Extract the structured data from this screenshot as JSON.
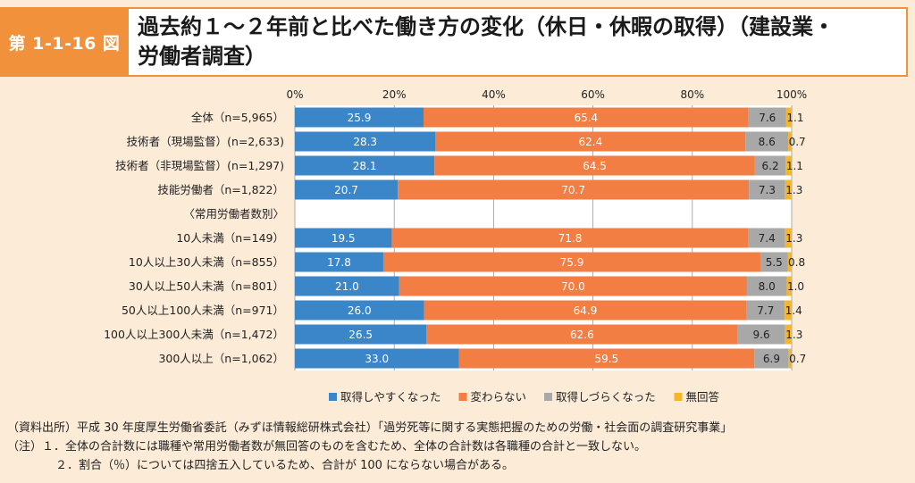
{
  "figure": {
    "label": "第 1-1-16 図",
    "title_line1": "過去約１～２年前と比べた働き方の変化（休日・休暇の取得）（建設業・",
    "title_line2": "労働者調査）"
  },
  "notes": {
    "source": "（資料出所）平成 30 年度厚生労働省委託（みずほ情報総研株式会社）「過労死等に関する実態把握のための労働・社会面の調査研究事業」",
    "note1": "（注）１．全体の合計数には職種や常用労働者数が無回答のものを含むため、全体の合計数は各職種の合計と一致しない。",
    "note2": "２．割合（％）については四捨五入しているため、合計が 100 にならない場合がある。"
  },
  "chart_data": {
    "type": "bar",
    "orientation": "horizontal",
    "stacked": true,
    "xlim": [
      0,
      100
    ],
    "x_ticks": [
      "0%",
      "20%",
      "40%",
      "60%",
      "80%",
      "100%"
    ],
    "grid": true,
    "legend_position": "bottom",
    "categories": [
      "全体（n=5,965）",
      "技術者（現場監督）(n=2,633)",
      "技術者（非現場監督）(n=1,297)",
      "技能労働者（n=1,822）",
      "〈常用労働者数別〉",
      "10人未満（n=149）",
      "10人以上30人未満（n=855）",
      "30人以上50人未満（n=801）",
      "50人以上100人未満（n=971）",
      "100人以上300人未満（n=1,472）",
      "300人以上（n=1,062）"
    ],
    "series": [
      {
        "name": "取得しやすくなった",
        "color": "#3a86c8",
        "values": [
          25.9,
          28.3,
          28.1,
          20.7,
          null,
          19.5,
          17.8,
          21.0,
          26.0,
          26.5,
          33.0
        ],
        "labels": [
          "25.9",
          "28.3",
          "28.1",
          "20.7",
          "",
          "19.5",
          "17.8",
          "21.0",
          "26.0",
          "26.5",
          "33.0"
        ]
      },
      {
        "name": "変わらない",
        "color": "#f37e43",
        "values": [
          65.4,
          62.4,
          64.5,
          70.7,
          null,
          71.8,
          75.9,
          70.0,
          64.9,
          62.6,
          59.5
        ],
        "labels": [
          "65.4",
          "62.4",
          "64.5",
          "70.7",
          "",
          "71.8",
          "75.9",
          "70.0",
          "64.9",
          "62.6",
          "59.5"
        ]
      },
      {
        "name": "取得しづらくなった",
        "color": "#a8a8a8",
        "values": [
          7.6,
          8.6,
          6.2,
          7.3,
          null,
          7.4,
          5.5,
          8.0,
          7.7,
          9.6,
          6.9
        ],
        "labels": [
          "7.6",
          "8.6",
          "6.2",
          "7.3",
          "",
          "7.4",
          "5.5",
          "8.0",
          "7.7",
          "9.6",
          "6.9"
        ]
      },
      {
        "name": "無回答",
        "color": "#f5b62a",
        "values": [
          1.1,
          0.7,
          1.1,
          1.3,
          null,
          1.3,
          0.8,
          1.0,
          1.4,
          1.3,
          0.7
        ],
        "labels": [
          "1.1",
          "0.7",
          "1.1",
          "1.3",
          "",
          "1.3",
          "0.8",
          "1.0",
          "1.4",
          "1.3",
          "0.7"
        ]
      }
    ]
  }
}
